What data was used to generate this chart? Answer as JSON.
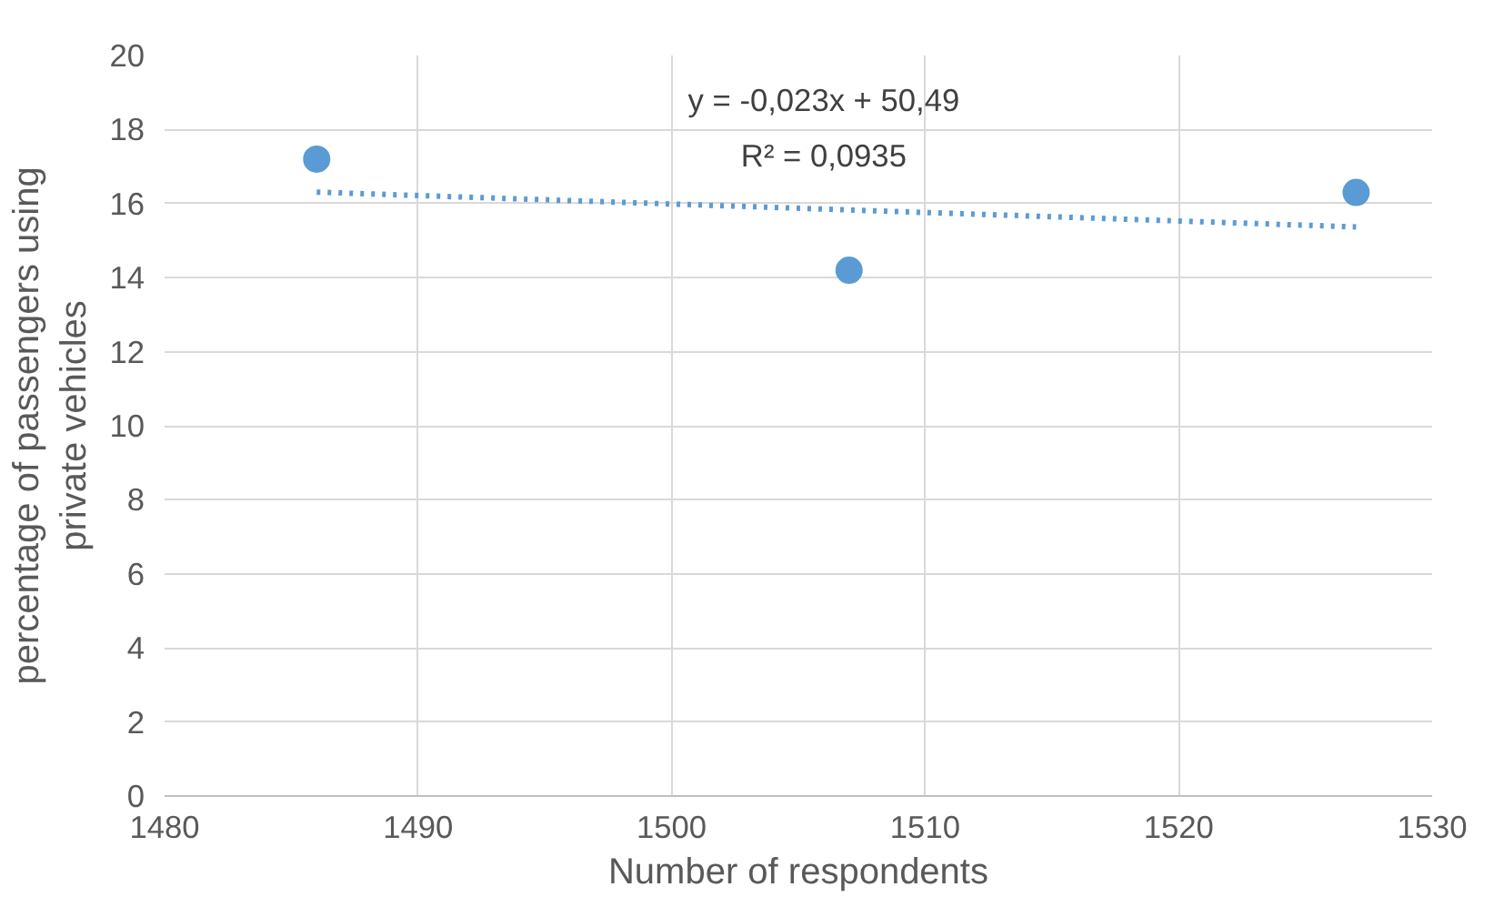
{
  "chart_data": {
    "type": "scatter",
    "xlabel": "Number of respondents",
    "ylabel": "percentage of passengers using\nprivate vehicles",
    "series": [
      {
        "color": "#5b9bd5",
        "x": [
          1486,
          1507,
          1527
        ],
        "values": [
          17.2,
          14.2,
          16.3
        ],
        "marker": "circle"
      },
      {
        "type": "line",
        "color": "#5b9bd5",
        "x": [
          1486,
          1527
        ],
        "values": [
          16.31,
          15.37
        ],
        "line_style": "dotted",
        "marker": "none"
      }
    ],
    "annotations": [
      "y = -0,023x + 50,49",
      "R² = 0,0935"
    ],
    "xlim": [
      1480,
      1530
    ],
    "xticks": [
      1480,
      1490,
      1500,
      1510,
      1520,
      1530
    ],
    "ylim": [
      0,
      20
    ],
    "yticks": [
      0,
      2,
      4,
      6,
      8,
      10,
      12,
      14,
      16,
      18,
      20
    ],
    "grid": true
  }
}
